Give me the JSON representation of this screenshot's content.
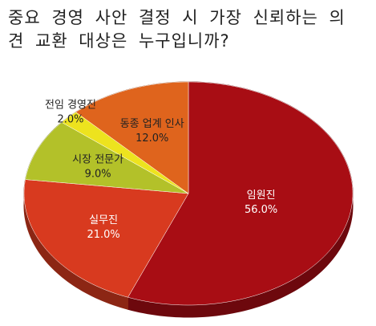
{
  "chart_data": {
    "type": "pie",
    "title": "중요 경영 사안 결정 시 가장 신뢰하는 의견 교환 대상은 누구입니까?",
    "categories": [
      "임원진",
      "실무진",
      "시장 전문가",
      "전임 경영진",
      "동종 업계 인사"
    ],
    "values": [
      56.0,
      21.0,
      9.0,
      2.0,
      12.0
    ],
    "value_labels": [
      "56.0%",
      "21.0%",
      "9.0%",
      "2.0%",
      "12.0%"
    ],
    "colors": [
      "#a80d14",
      "#d83a1f",
      "#b3c129",
      "#ede31e",
      "#df641d"
    ]
  }
}
